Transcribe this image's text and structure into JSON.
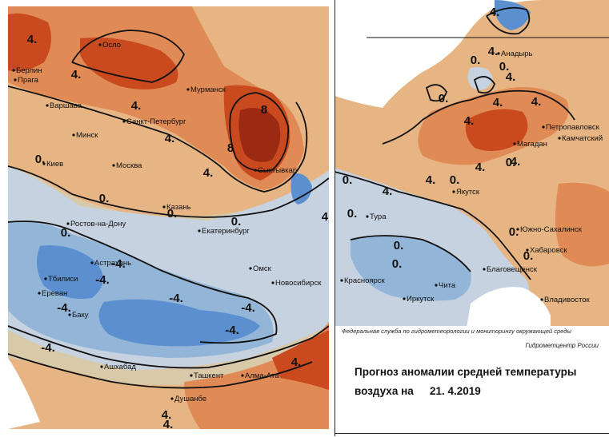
{
  "colors": {
    "warm_strong": "#c84a1e",
    "warm_darkest": "#9a2a12",
    "warm_mid": "#e08a55",
    "warm_light": "#e6b583",
    "neutral": "#d8c9a8",
    "cool_light": "#c6d2e0",
    "cool_mid": "#93b6d8",
    "cool_strong": "#5b8fd0",
    "cool_darkest": "#3d6fc4",
    "line": "#111111"
  },
  "left_map": {
    "cities": [
      "Осло",
      "Берлин",
      "Прага",
      "Варшава",
      "Мурманск",
      "Санкт-Петербург",
      "Минск",
      "Киев",
      "Москва",
      "Сыктывкар",
      "Казань",
      "Екатеринбург",
      "Ростов-на-Дону",
      "Астрахань",
      "Тбилиси",
      "Ереван",
      "Баку",
      "Омск",
      "Новосибирск",
      "Ашхабад",
      "Ташкент",
      "Алма-Ата",
      "Душанбе"
    ],
    "isolines": [
      "4.",
      "4.",
      "4.",
      "4.",
      "4.",
      "4.",
      "4.",
      "8",
      "8",
      "0.",
      "0.",
      "0.",
      "0.",
      "0.",
      "-4.",
      "-4.",
      "-4.",
      "-4.",
      "-4.",
      "-4.",
      "-4.",
      "4.",
      "4."
    ]
  },
  "right_map": {
    "cities": [
      "Анадырь",
      "Петропавловск",
      "Камчатский",
      "Магадан",
      "Якутск",
      "Тура",
      "Южно-Сахалинск",
      "Хабаровск",
      "Благовещенск",
      "Красноярск",
      "Чита",
      "Иркутск",
      "Владивосток"
    ],
    "isolines": [
      "4.",
      "4.",
      "0.",
      "0.",
      "0.",
      "4.",
      "4.",
      "4.",
      "4.",
      "4.",
      "4.",
      "0.",
      "4.",
      "0.",
      "0.",
      "0.",
      "0.",
      "0.",
      "0.",
      "0.",
      "4."
    ]
  },
  "caption": {
    "credit_org": "Федеральная служба по гидрометеорологии и мониторингу окружающей среды",
    "credit_center": "Гидрометцентр России",
    "title_line1": "Прогноз аномалии средней температуры",
    "title_line2": "воздуха на",
    "date": "21. 4.2019"
  }
}
